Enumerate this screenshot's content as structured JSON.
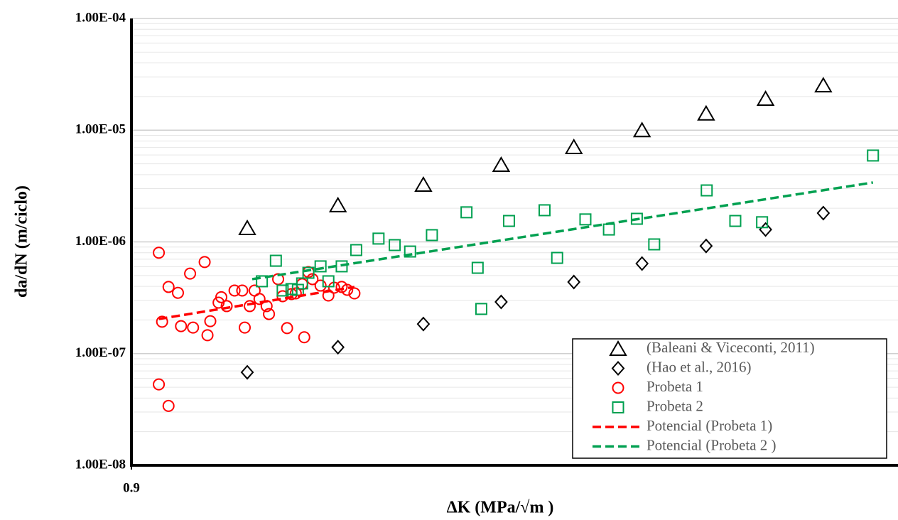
{
  "chart_data": {
    "type": "scatter",
    "x_title": "ΔK (MPa/√m )",
    "y_title": "da/dN (m/ciclo)",
    "x_log": true,
    "y_log": true,
    "grid": true,
    "minor_grid": true,
    "legend": "lower right",
    "xlim": [
      0.9,
      9.75
    ],
    "ylim": [
      1e-08,
      0.0001
    ],
    "xticks": [
      0.9
    ],
    "yticks": [
      {
        "value": 1e-08,
        "label": "1.00E-08"
      },
      {
        "value": 1e-07,
        "label": "1.00E-07"
      },
      {
        "value": 1e-06,
        "label": "1.00E-06"
      },
      {
        "value": 1e-05,
        "label": "1.00E-05"
      },
      {
        "value": 0.0001,
        "label": "1.00E-04"
      }
    ],
    "series": [
      {
        "name": "(Baleani & Viceconti, 2011)",
        "color": "#000000",
        "marker": "triangle",
        "x": [
          1.29,
          1.71,
          2.23,
          2.84,
          3.56,
          4.4,
          5.37,
          6.46,
          7.73
        ],
        "values": [
          1.33e-06,
          2.13e-06,
          3.25e-06,
          4.9e-06,
          7.06e-06,
          1e-05,
          1.41e-05,
          1.91e-05,
          2.52e-05
        ]
      },
      {
        "name": "(Hao et al., 2016)",
        "color": "#000000",
        "marker": "diamond",
        "x": [
          1.29,
          1.71,
          2.23,
          2.84,
          3.56,
          4.4,
          5.37,
          6.46,
          7.73
        ],
        "values": [
          6.8e-08,
          1.14e-07,
          1.84e-07,
          2.9e-07,
          4.37e-07,
          6.4e-07,
          9.2e-07,
          1.29e-06,
          1.81e-06
        ]
      },
      {
        "name": "Probeta 1",
        "color": "#ff0000",
        "marker": "circle",
        "x": [
          0.98,
          0.98,
          0.99,
          1.01,
          1.01,
          1.04,
          1.05,
          1.08,
          1.09,
          1.13,
          1.14,
          1.15,
          1.18,
          1.19,
          1.21,
          1.24,
          1.27,
          1.28,
          1.3,
          1.32,
          1.34,
          1.37,
          1.38,
          1.42,
          1.44,
          1.46,
          1.48,
          1.5,
          1.53,
          1.54,
          1.56,
          1.58,
          1.62,
          1.66,
          1.69,
          1.73,
          1.76,
          1.8
        ],
        "values": [
          8e-07,
          5.3e-08,
          1.93e-07,
          3.95e-07,
          3.4e-08,
          3.5e-07,
          1.76e-07,
          5.2e-07,
          1.71e-07,
          6.6e-07,
          1.46e-07,
          1.95e-07,
          2.86e-07,
          3.2e-07,
          2.66e-07,
          3.67e-07,
          3.67e-07,
          1.71e-07,
          2.66e-07,
          3.67e-07,
          3.08e-07,
          2.66e-07,
          2.26e-07,
          4.64e-07,
          3.26e-07,
          1.69e-07,
          3.41e-07,
          3.46e-07,
          4.19e-07,
          1.4e-07,
          5.37e-07,
          4.64e-07,
          4.06e-07,
          3.31e-07,
          3.89e-07,
          3.95e-07,
          3.72e-07,
          3.46e-07
        ]
      },
      {
        "name": "Probeta 2",
        "color": "#00a050",
        "marker": "square",
        "x": [
          1.35,
          1.41,
          1.44,
          1.48,
          1.51,
          1.53,
          1.56,
          1.62,
          1.66,
          1.73,
          1.81,
          1.94,
          2.04,
          2.14,
          2.29,
          2.55,
          2.64,
          2.67,
          2.91,
          3.25,
          3.38,
          3.69,
          3.97,
          4.33,
          4.57,
          5.38,
          5.88,
          6.39,
          9.02
        ],
        "values": [
          4.44e-07,
          6.78e-07,
          3.67e-07,
          3.78e-07,
          3.72e-07,
          4.25e-07,
          5.29e-07,
          6.04e-07,
          4.44e-07,
          6.04e-07,
          8.45e-07,
          1.07e-06,
          9.36e-07,
          8.2e-07,
          1.15e-06,
          1.84e-06,
          5.86e-07,
          2.51e-07,
          1.54e-06,
          1.92e-06,
          7.19e-07,
          1.59e-06,
          1.29e-06,
          1.61e-06,
          9.5e-07,
          2.89e-06,
          1.54e-06,
          1.5e-06,
          5.93e-06
        ]
      },
      {
        "name": "Potencial (Probeta 1)",
        "color": "#ff0000",
        "line": "dashed",
        "x": [
          0.98,
          1.8
        ],
        "values": [
          2.04e-07,
          3.95e-07
        ]
      },
      {
        "name": "Potencial (Probeta 2 )",
        "color": "#00a050",
        "line": "dashed",
        "x": [
          1.31,
          9.02
        ],
        "values": [
          4.64e-07,
          3.4e-06
        ]
      }
    ]
  }
}
